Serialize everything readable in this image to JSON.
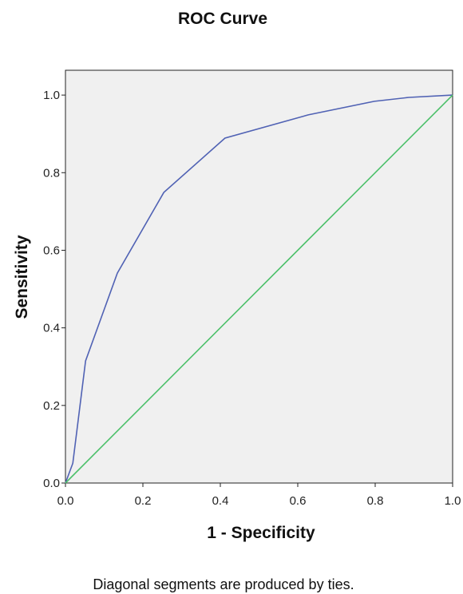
{
  "chart_data": {
    "type": "line",
    "title": "ROC Curve",
    "xlabel": "1 - Specificity",
    "ylabel": "Sensitivity",
    "note": "Diagonal segments are produced by ties.",
    "xlim": [
      0,
      1
    ],
    "ylim": [
      0,
      1.064
    ],
    "xticks": [
      {
        "value": 0,
        "label": "0.0"
      },
      {
        "value": 0.2,
        "label": "0.2"
      },
      {
        "value": 0.4,
        "label": "0.4"
      },
      {
        "value": 0.6,
        "label": "0.6"
      },
      {
        "value": 0.8,
        "label": "0.8"
      },
      {
        "value": 1,
        "label": "1.0"
      }
    ],
    "yticks": [
      {
        "value": 0,
        "label": "0.0"
      },
      {
        "value": 0.2,
        "label": "0.2"
      },
      {
        "value": 0.4,
        "label": "0.4"
      },
      {
        "value": 0.6,
        "label": "0.6"
      },
      {
        "value": 0.8,
        "label": "0.8"
      },
      {
        "value": 1,
        "label": "1.0"
      }
    ],
    "series": [
      {
        "color": "#5062b4",
        "x": [
          0,
          0.019,
          0.052,
          0.134,
          0.254,
          0.412,
          0.627,
          0.798,
          0.887,
          1
        ],
        "values": [
          0,
          0.051,
          0.315,
          0.541,
          0.749,
          0.889,
          0.949,
          0.984,
          0.994,
          1
        ]
      },
      {
        "color": "#4cc06a",
        "x": [
          0,
          1
        ],
        "values": [
          0,
          1
        ]
      }
    ]
  }
}
